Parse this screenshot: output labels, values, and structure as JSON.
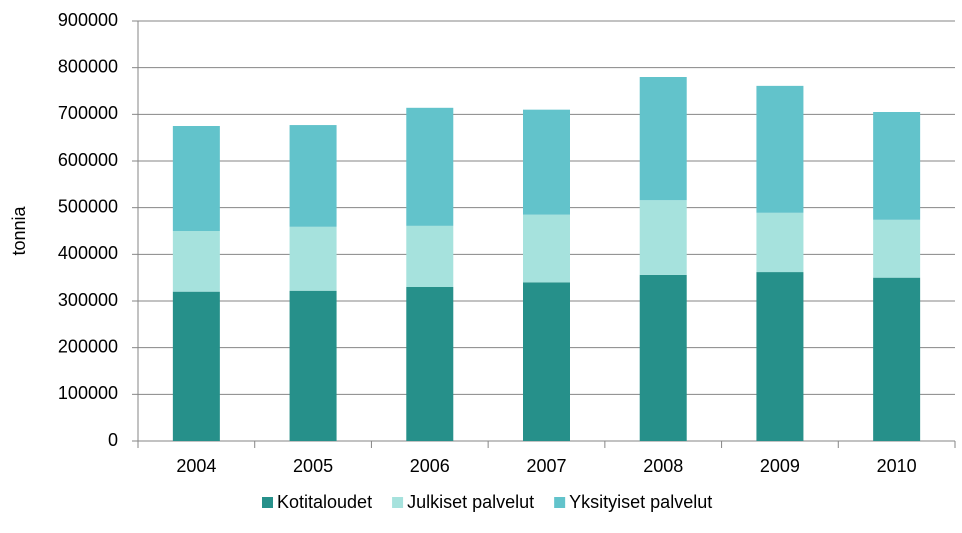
{
  "chart_data": {
    "type": "stacked_bar",
    "y_label": "tonnia",
    "categories": [
      "2004",
      "2005",
      "2006",
      "2007",
      "2008",
      "2009",
      "2010"
    ],
    "series": [
      {
        "name": "Kotitaloudet",
        "color": "#26908a",
        "values": [
          320000,
          322000,
          330000,
          340000,
          356000,
          362000,
          350000
        ]
      },
      {
        "name": "Julkiset palvelut",
        "color": "#a6e2dd",
        "values": [
          130000,
          137000,
          131000,
          145000,
          160000,
          127000,
          124000
        ]
      },
      {
        "name": "Yksityiset palvelut",
        "color": "#62c3cb",
        "values": [
          225000,
          218000,
          253000,
          225000,
          264000,
          272000,
          231000
        ]
      }
    ],
    "ylim": [
      0,
      900000
    ],
    "yticks": [
      0,
      100000,
      200000,
      300000,
      400000,
      500000,
      600000,
      700000,
      800000,
      900000
    ],
    "grid": true,
    "legend": "bottom"
  }
}
